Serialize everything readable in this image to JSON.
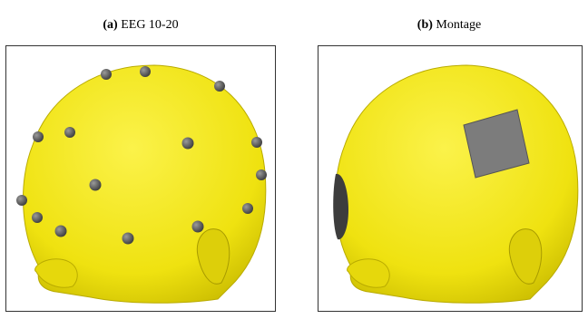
{
  "panels": [
    {
      "label": "(a)",
      "caption": "EEG 10-20"
    },
    {
      "label": "(b)",
      "caption": "Montage"
    }
  ]
}
